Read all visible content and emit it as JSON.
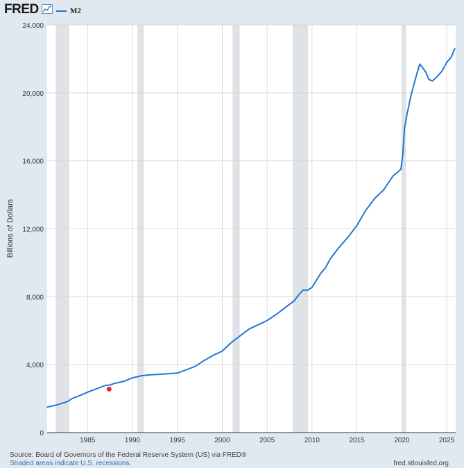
{
  "header": {
    "logo": "FRED",
    "logo_icon": "chart-line-icon",
    "series_label": "M2"
  },
  "colors": {
    "line": "#1f77d4",
    "recession": "#dfe3e7",
    "marker": "#e0262d",
    "grid": "#d4d4d4"
  },
  "chart_data": {
    "type": "line",
    "ylabel": "Billions of Dollars",
    "xlabel": "",
    "ylim": [
      0,
      24000
    ],
    "xlim": [
      1980.5,
      2026.0
    ],
    "yticks": [
      0,
      4000,
      8000,
      12000,
      16000,
      20000,
      24000
    ],
    "ytick_labels": [
      "0",
      "4,000",
      "8,000",
      "12,000",
      "16,000",
      "20,000",
      "24,000"
    ],
    "xticks": [
      1985,
      1990,
      1995,
      2000,
      2005,
      2010,
      2015,
      2020,
      2025
    ],
    "xtick_labels": [
      "1985",
      "1990",
      "1995",
      "2000",
      "2005",
      "2010",
      "2015",
      "2020",
      "2025"
    ],
    "recessions": [
      [
        1981.5,
        1982.9
      ],
      [
        1990.6,
        1991.2
      ],
      [
        2001.2,
        2001.9
      ],
      [
        2007.9,
        2009.5
      ],
      [
        2020.1,
        2020.4
      ]
    ],
    "series": [
      {
        "name": "M2",
        "x": [
          1980.5,
          1981.0,
          1981.5,
          1982.0,
          1982.5,
          1982.9,
          1983.2,
          1984.0,
          1985.0,
          1986.0,
          1987.0,
          1987.5,
          1988.0,
          1989.0,
          1990.0,
          1991.0,
          1992.0,
          1993.0,
          1994.0,
          1995.0,
          1996.0,
          1997.0,
          1998.0,
          1999.0,
          2000.0,
          2001.0,
          2001.5,
          2002.0,
          2003.0,
          2004.0,
          2005.0,
          2006.0,
          2007.0,
          2008.0,
          2008.5,
          2009.0,
          2009.5,
          2010.0,
          2011.0,
          2011.5,
          2012.0,
          2013.0,
          2014.0,
          2015.0,
          2016.0,
          2017.0,
          2018.0,
          2019.0,
          2019.9,
          2020.1,
          2020.3,
          2020.6,
          2021.0,
          2021.5,
          2022.0,
          2022.3,
          2022.7,
          2023.0,
          2023.4,
          2023.8,
          2024.0,
          2024.5,
          2025.0,
          2025.5,
          2025.9
        ],
        "values": [
          1500,
          1560,
          1620,
          1700,
          1780,
          1860,
          1990,
          2150,
          2380,
          2580,
          2780,
          2800,
          2900,
          3010,
          3220,
          3350,
          3400,
          3430,
          3470,
          3500,
          3700,
          3900,
          4250,
          4550,
          4800,
          5300,
          5500,
          5700,
          6100,
          6350,
          6600,
          6950,
          7350,
          7750,
          8100,
          8400,
          8380,
          8550,
          9400,
          9700,
          10200,
          10900,
          11500,
          12200,
          13100,
          13800,
          14300,
          15100,
          15500,
          16300,
          17900,
          18800,
          19800,
          20800,
          21700,
          21500,
          21200,
          20800,
          20700,
          20900,
          21000,
          21300,
          21800,
          22100,
          22600
        ]
      }
    ],
    "highlight_point": {
      "x": 1987.4,
      "y": 2560
    }
  },
  "footer": {
    "source": "Source: Board of Governors of the Federal Reserve System (US) via FRED®",
    "note": "Shaded areas indicate U.S. recessions.",
    "site": "fred.stlouisfed.org"
  }
}
